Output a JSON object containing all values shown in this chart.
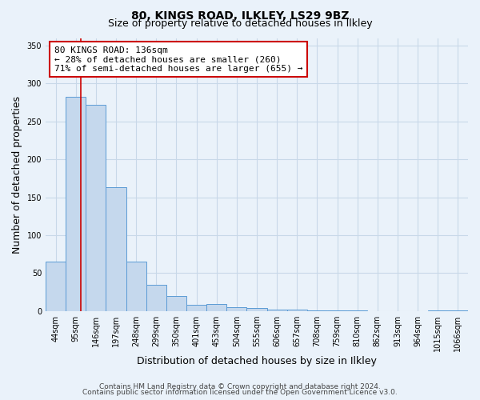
{
  "title": "80, KINGS ROAD, ILKLEY, LS29 9BZ",
  "subtitle": "Size of property relative to detached houses in Ilkley",
  "xlabel": "Distribution of detached houses by size in Ilkley",
  "ylabel": "Number of detached properties",
  "bar_labels": [
    "44sqm",
    "95sqm",
    "146sqm",
    "197sqm",
    "248sqm",
    "299sqm",
    "350sqm",
    "401sqm",
    "453sqm",
    "504sqm",
    "555sqm",
    "606sqm",
    "657sqm",
    "708sqm",
    "759sqm",
    "810sqm",
    "862sqm",
    "913sqm",
    "964sqm",
    "1015sqm",
    "1066sqm"
  ],
  "bar_values": [
    65,
    282,
    272,
    163,
    65,
    35,
    20,
    8,
    9,
    5,
    4,
    2,
    2,
    1,
    1,
    1,
    0,
    0,
    0,
    1,
    1
  ],
  "bar_color": "#c5d8ed",
  "bar_edge_color": "#5b9bd5",
  "red_line_x": 1.74,
  "annotation_title": "80 KINGS ROAD: 136sqm",
  "annotation_line1": "← 28% of detached houses are smaller (260)",
  "annotation_line2": "71% of semi-detached houses are larger (655) →",
  "annotation_box_color": "white",
  "annotation_box_edge": "#cc0000",
  "ylim": [
    0,
    360
  ],
  "yticks": [
    0,
    50,
    100,
    150,
    200,
    250,
    300,
    350
  ],
  "footer1": "Contains HM Land Registry data © Crown copyright and database right 2024.",
  "footer2": "Contains public sector information licensed under the Open Government Licence v3.0.",
  "background_color": "#eaf2fa",
  "plot_background": "#eaf2fa",
  "grid_color": "#c8d8e8",
  "title_fontsize": 10,
  "subtitle_fontsize": 9,
  "axis_label_fontsize": 9,
  "tick_fontsize": 7,
  "footer_fontsize": 6.5,
  "annot_fontsize": 8
}
